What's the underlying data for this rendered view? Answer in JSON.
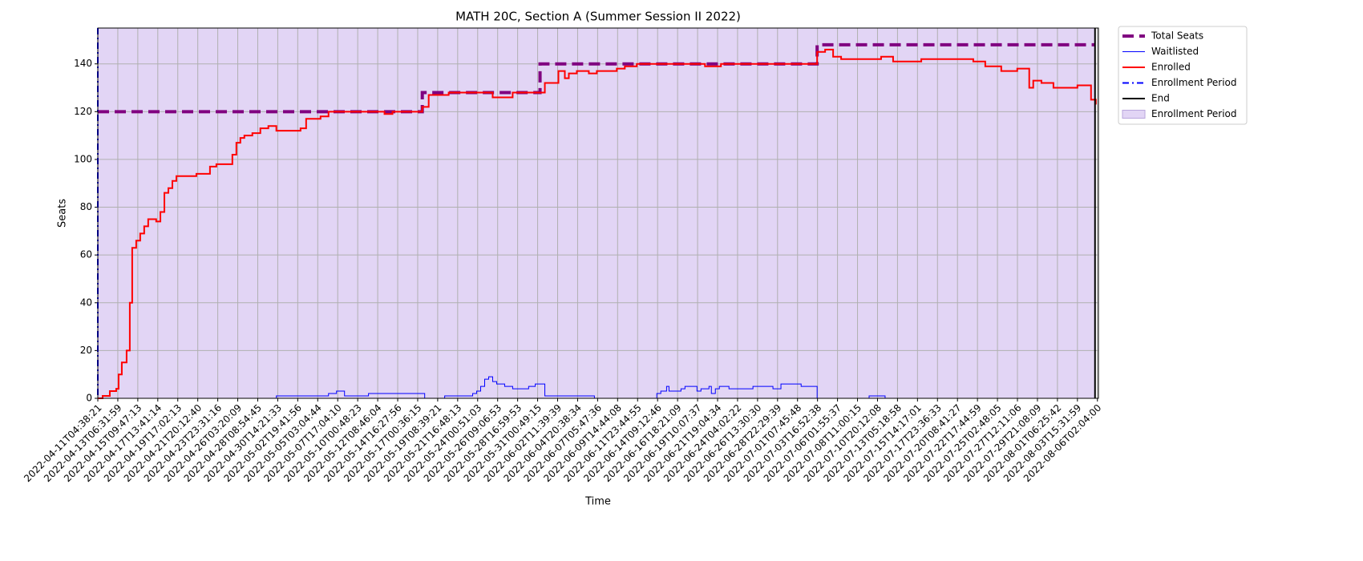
{
  "chart_data": {
    "type": "line",
    "title": "MATH 20C, Section A (Summer Session II 2022)",
    "xlabel": "Time",
    "ylabel": "Seats",
    "xlim": [
      0,
      50.05
    ],
    "ylim": [
      0,
      155
    ],
    "yticks": [
      0,
      20,
      40,
      60,
      80,
      100,
      120,
      140
    ],
    "xticks": [
      {
        "value": 0,
        "label": "2022-04-11T04:38:21"
      },
      {
        "value": 1,
        "label": "2022-04-13T06:31:59"
      },
      {
        "value": 2,
        "label": "2022-04-15T09:47:13"
      },
      {
        "value": 3,
        "label": "2022-04-17T13:41:14"
      },
      {
        "value": 4,
        "label": "2022-04-19T17:02:13"
      },
      {
        "value": 5,
        "label": "2022-04-21T20:12:40"
      },
      {
        "value": 6,
        "label": "2022-04-23T23:31:16"
      },
      {
        "value": 7,
        "label": "2022-04-26T03:20:09"
      },
      {
        "value": 8,
        "label": "2022-04-28T08:54:45"
      },
      {
        "value": 9,
        "label": "2022-04-30T14:21:33"
      },
      {
        "value": 10,
        "label": "2022-05-02T19:41:56"
      },
      {
        "value": 11,
        "label": "2022-05-05T03:04:44"
      },
      {
        "value": 12,
        "label": "2022-05-07T17:04:10"
      },
      {
        "value": 13,
        "label": "2022-05-10T00:48:23"
      },
      {
        "value": 14,
        "label": "2022-05-12T08:46:04"
      },
      {
        "value": 15,
        "label": "2022-05-14T16:27:56"
      },
      {
        "value": 16,
        "label": "2022-05-17T00:36:15"
      },
      {
        "value": 17,
        "label": "2022-05-19T08:39:21"
      },
      {
        "value": 18,
        "label": "2022-05-21T16:48:13"
      },
      {
        "value": 19,
        "label": "2022-05-24T00:51:03"
      },
      {
        "value": 20,
        "label": "2022-05-26T09:06:53"
      },
      {
        "value": 21,
        "label": "2022-05-28T16:59:53"
      },
      {
        "value": 22,
        "label": "2022-05-31T00:49:15"
      },
      {
        "value": 23,
        "label": "2022-06-02T11:39:39"
      },
      {
        "value": 24,
        "label": "2022-06-04T20:38:34"
      },
      {
        "value": 25,
        "label": "2022-06-07T05:47:36"
      },
      {
        "value": 26,
        "label": "2022-06-09T14:44:08"
      },
      {
        "value": 27,
        "label": "2022-06-11T23:44:55"
      },
      {
        "value": 28,
        "label": "2022-06-14T09:12:46"
      },
      {
        "value": 29,
        "label": "2022-06-16T18:21:09"
      },
      {
        "value": 30,
        "label": "2022-06-19T10:07:37"
      },
      {
        "value": 31,
        "label": "2022-06-21T19:04:34"
      },
      {
        "value": 32,
        "label": "2022-06-24T04:02:22"
      },
      {
        "value": 33,
        "label": "2022-06-26T13:30:30"
      },
      {
        "value": 34,
        "label": "2022-06-28T22:29:39"
      },
      {
        "value": 35,
        "label": "2022-07-01T07:45:48"
      },
      {
        "value": 36,
        "label": "2022-07-03T16:52:38"
      },
      {
        "value": 37,
        "label": "2022-07-06T01:55:37"
      },
      {
        "value": 38,
        "label": "2022-07-08T11:00:15"
      },
      {
        "value": 39,
        "label": "2022-07-10T20:12:08"
      },
      {
        "value": 40,
        "label": "2022-07-13T05:18:58"
      },
      {
        "value": 41,
        "label": "2022-07-15T14:17:01"
      },
      {
        "value": 42,
        "label": "2022-07-17T23:36:33"
      },
      {
        "value": 43,
        "label": "2022-07-20T08:41:27"
      },
      {
        "value": 44,
        "label": "2022-07-22T17:44:59"
      },
      {
        "value": 45,
        "label": "2022-07-25T02:48:05"
      },
      {
        "value": 46,
        "label": "2022-07-27T12:11:06"
      },
      {
        "value": 47,
        "label": "2022-07-29T21:08:09"
      },
      {
        "value": 48,
        "label": "2022-08-01T06:25:42"
      },
      {
        "value": 49,
        "label": "2022-08-03T15:31:59"
      },
      {
        "value": 50,
        "label": "2022-08-06T02:04:00"
      }
    ],
    "grid": true,
    "legend": "outside upper right",
    "span": {
      "name": "Enrollment Period",
      "x": [
        0,
        49.88
      ],
      "color": "#e2d5f5"
    },
    "series": [
      {
        "name": "Total Seats",
        "color": "#800080",
        "width": 4,
        "dash": "dashed",
        "step": "post",
        "x": [
          0,
          16.23,
          22.12,
          35.98,
          49.88
        ],
        "values": [
          120,
          128,
          140,
          148,
          148
        ]
      },
      {
        "name": "Waitlisted",
        "color": "#0000ff",
        "width": 1,
        "dash": "solid",
        "step": "post",
        "x": [
          0,
          8.93,
          11.54,
          11.94,
          12.34,
          13.54,
          16.35,
          17.35,
          18.75,
          18.95,
          19.15,
          19.35,
          19.55,
          19.75,
          19.95,
          20.35,
          20.75,
          21.55,
          21.88,
          22.36,
          24.84,
          27.96,
          28.16,
          28.45,
          28.57,
          29.17,
          29.37,
          29.97,
          30.17,
          30.57,
          30.69,
          30.89,
          31.09,
          31.57,
          32.77,
          33.77,
          34.17,
          35.18,
          35.98,
          38.58,
          39.38,
          49.92
        ],
        "values": [
          0,
          1,
          2,
          3,
          1,
          2,
          0,
          1,
          2,
          3,
          5,
          8,
          9,
          7,
          6,
          5,
          4,
          5,
          6,
          1,
          0,
          2,
          3,
          5,
          3,
          4,
          5,
          3,
          4,
          5,
          2,
          4,
          5,
          4,
          5,
          4,
          6,
          5,
          0,
          1,
          0,
          0
        ]
      },
      {
        "name": "Enrolled",
        "color": "#ff0000",
        "width": 2,
        "dash": "solid",
        "step": "post",
        "x": [
          0,
          0.24,
          0.6,
          0.92,
          1.04,
          1.2,
          1.44,
          1.6,
          1.72,
          1.92,
          2.12,
          2.32,
          2.52,
          2.92,
          3.13,
          3.33,
          3.53,
          3.73,
          3.93,
          4.93,
          5.61,
          5.93,
          6.53,
          6.73,
          6.93,
          7.13,
          7.33,
          7.73,
          8.13,
          8.53,
          8.93,
          9.94,
          10.14,
          10.42,
          11.14,
          11.54,
          13.94,
          14.34,
          14.74,
          15.95,
          16.23,
          16.55,
          17.55,
          19.15,
          19.75,
          20.75,
          22.16,
          22.36,
          22.76,
          23.04,
          23.36,
          23.56,
          23.96,
          24.56,
          24.96,
          25.96,
          26.36,
          26.96,
          29.97,
          30.37,
          31.17,
          35.78,
          35.98,
          36.38,
          36.78,
          37.18,
          39.18,
          39.78,
          40.79,
          41.19,
          43.19,
          43.79,
          44.39,
          45.19,
          45.99,
          46.59,
          46.79,
          47.2,
          47.8,
          49.0,
          49.68,
          49.92
        ],
        "values": [
          0,
          1,
          3,
          4,
          10,
          15,
          20,
          40,
          63,
          66,
          69,
          72,
          75,
          74,
          78,
          86,
          88,
          91,
          93,
          94,
          97,
          98,
          98,
          102,
          107,
          109,
          110,
          111,
          113,
          114,
          112,
          112,
          113,
          117,
          118,
          120,
          120,
          119,
          120,
          120,
          122,
          127,
          128,
          128,
          126,
          128,
          128,
          132,
          132,
          137,
          134,
          136,
          137,
          136,
          137,
          138,
          139,
          140,
          140,
          139,
          140,
          140,
          145,
          146,
          143,
          142,
          143,
          141,
          141,
          142,
          142,
          141,
          139,
          137,
          138,
          130,
          133,
          132,
          130,
          131,
          125,
          123
        ]
      }
    ],
    "vlines": [
      {
        "name": "Enrollment Period",
        "x": 0,
        "color": "#0000ff",
        "width": 2,
        "dash": "dashdot"
      },
      {
        "name": "End",
        "x": 49.88,
        "color": "#000000",
        "width": 2,
        "dash": "solid"
      }
    ]
  }
}
